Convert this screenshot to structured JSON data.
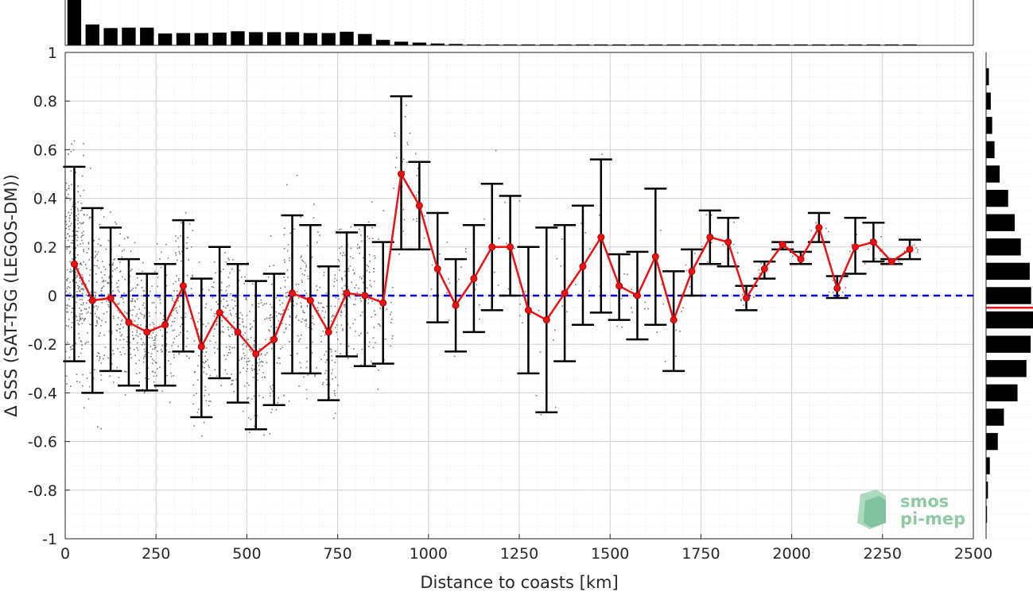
{
  "chart_data": {
    "type": "line",
    "xlabel": "Distance to coasts [km]",
    "ylabel": "Δ SSS (SAT-TSG (LEGOS-DM))",
    "xlim": [
      0,
      2500
    ],
    "ylim": [
      -1,
      1
    ],
    "xticks": [
      0,
      250,
      500,
      750,
      1000,
      1250,
      1500,
      1750,
      2000,
      2250,
      2500
    ],
    "xtick_labels": [
      "0",
      "250",
      "500",
      "750",
      "1000",
      "1250",
      "1500",
      "1750",
      "2000",
      "2250",
      "2500"
    ],
    "yticks": [
      -1,
      -0.8,
      -0.6,
      -0.4,
      -0.2,
      0,
      0.2,
      0.4,
      0.6,
      0.8,
      1
    ],
    "ytick_labels": [
      "-1",
      "-0.8",
      "-0.6",
      "-0.4",
      "-0.2",
      "0",
      "0.2",
      "0.4",
      "0.6",
      "0.8",
      "1"
    ],
    "grid": true,
    "reference_line": {
      "y": 0,
      "color": "#0000dd",
      "style": "dashed"
    },
    "series": [
      {
        "color": "#ee1111",
        "x": [
          25,
          75,
          125,
          175,
          225,
          275,
          325,
          375,
          425,
          475,
          525,
          575,
          625,
          675,
          725,
          775,
          825,
          875,
          925,
          975,
          1025,
          1075,
          1125,
          1175,
          1225,
          1275,
          1325,
          1375,
          1425,
          1475,
          1525,
          1575,
          1625,
          1675,
          1725,
          1775,
          1825,
          1875,
          1925,
          1975,
          2025,
          2075,
          2125,
          2175,
          2225,
          2275,
          2325
        ],
        "y": [
          0.13,
          -0.02,
          -0.01,
          -0.11,
          -0.15,
          -0.12,
          0.04,
          -0.21,
          -0.07,
          -0.15,
          -0.24,
          -0.18,
          0.01,
          -0.02,
          -0.15,
          0.01,
          0.0,
          -0.03,
          0.5,
          0.37,
          0.11,
          -0.04,
          0.07,
          0.2,
          0.2,
          -0.06,
          -0.1,
          0.01,
          0.12,
          0.24,
          0.04,
          0.0,
          0.16,
          -0.1,
          0.1,
          0.24,
          0.22,
          -0.01,
          0.11,
          0.21,
          0.15,
          0.28,
          0.03,
          0.2,
          0.22,
          0.14,
          0.19
        ],
        "err_low": [
          -0.27,
          -0.4,
          -0.31,
          -0.37,
          -0.39,
          -0.37,
          -0.23,
          -0.5,
          -0.34,
          -0.44,
          -0.55,
          -0.45,
          -0.32,
          -0.32,
          -0.43,
          -0.25,
          -0.29,
          -0.28,
          0.19,
          0.19,
          -0.11,
          -0.23,
          -0.15,
          -0.06,
          0.0,
          -0.32,
          -0.48,
          -0.27,
          -0.12,
          -0.07,
          -0.1,
          -0.18,
          -0.12,
          -0.31,
          0.0,
          0.13,
          0.12,
          -0.06,
          0.07,
          0.19,
          0.13,
          0.22,
          -0.01,
          0.09,
          0.14,
          0.13,
          0.15
        ],
        "err_high": [
          0.53,
          0.36,
          0.28,
          0.15,
          0.09,
          0.13,
          0.31,
          0.07,
          0.2,
          0.13,
          0.06,
          0.09,
          0.33,
          0.29,
          0.12,
          0.26,
          0.29,
          0.22,
          0.82,
          0.55,
          0.34,
          0.15,
          0.29,
          0.46,
          0.41,
          0.2,
          0.28,
          0.29,
          0.37,
          0.56,
          0.17,
          0.18,
          0.44,
          0.1,
          0.19,
          0.35,
          0.32,
          0.04,
          0.14,
          0.22,
          0.18,
          0.34,
          0.08,
          0.32,
          0.3,
          0.15,
          0.23
        ]
      }
    ],
    "top_histogram": {
      "bin_centers": [
        25,
        75,
        125,
        175,
        225,
        275,
        325,
        375,
        425,
        475,
        525,
        575,
        625,
        675,
        725,
        775,
        825,
        875,
        925,
        975,
        1025,
        1075,
        1125,
        1175,
        1225,
        1275,
        1325,
        1375,
        1425,
        1475,
        1525,
        1575,
        1625,
        1675,
        1725,
        1775,
        1825,
        1875,
        1925,
        1975,
        2025,
        2075,
        2125,
        2175,
        2225,
        2275,
        2325
      ],
      "relative_counts": [
        1.0,
        0.46,
        0.38,
        0.39,
        0.39,
        0.26,
        0.27,
        0.27,
        0.28,
        0.31,
        0.29,
        0.29,
        0.29,
        0.27,
        0.27,
        0.3,
        0.25,
        0.12,
        0.08,
        0.06,
        0.04,
        0.03,
        0.02,
        0.02,
        0.02,
        0.02,
        0.02,
        0.02,
        0.02,
        0.02,
        0.02,
        0.02,
        0.02,
        0.02,
        0.02,
        0.02,
        0.02,
        0.02,
        0.02,
        0.02,
        0.02,
        0.02,
        0.02,
        0.02,
        0.02,
        0.02,
        0.02
      ]
    },
    "right_histogram": {
      "bin_centers": [
        -0.9,
        -0.8,
        -0.7,
        -0.6,
        -0.5,
        -0.4,
        -0.3,
        -0.2,
        -0.1,
        0.0,
        0.1,
        0.2,
        0.3,
        0.4,
        0.5,
        0.6,
        0.7,
        0.8,
        0.9
      ],
      "relative_counts": [
        0.02,
        0.04,
        0.08,
        0.25,
        0.38,
        0.67,
        0.86,
        0.95,
        1.0,
        0.96,
        0.93,
        0.74,
        0.61,
        0.47,
        0.29,
        0.18,
        0.13,
        0.1,
        0.06
      ],
      "mean_line": {
        "y": -0.05,
        "color": "#ee1111"
      }
    },
    "scatter": {
      "color": "#7a7a7a",
      "note_visible": false
    }
  },
  "logo": {
    "line1": "smos",
    "line2": "pi-mep"
  }
}
